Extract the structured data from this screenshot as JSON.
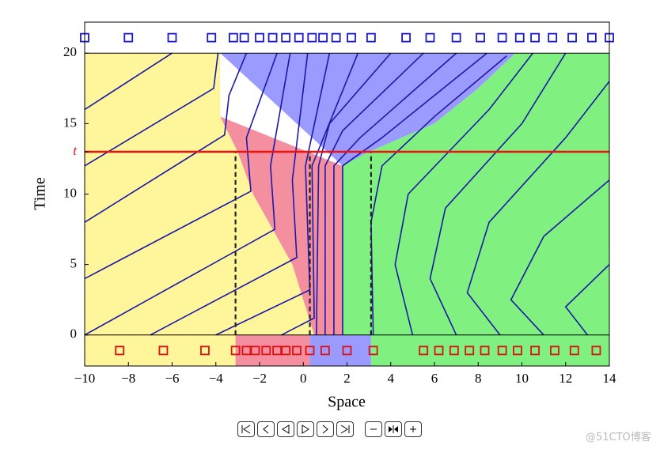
{
  "chart_data": {
    "type": "trajectory",
    "xlabel": "Space",
    "ylabel": "Time",
    "xlim": [
      -10,
      14
    ],
    "ylim": [
      -2.2,
      22.2
    ],
    "xticks": [
      {
        "value": -10,
        "label": "−10"
      },
      {
        "value": -8,
        "label": "−8"
      },
      {
        "value": -6,
        "label": "−6"
      },
      {
        "value": -4,
        "label": "−4"
      },
      {
        "value": -2,
        "label": "−2"
      },
      0,
      2,
      4,
      6,
      8,
      10,
      12,
      14
    ],
    "yticks": [
      0,
      5,
      10,
      15,
      20,
      {
        "value": 13,
        "label": "t"
      }
    ],
    "regions": [
      {
        "color": "#fff59a",
        "x": [
          -10,
          -3.8,
          -3.8,
          -3.0,
          -2.3,
          -0.5,
          0.5,
          -10
        ],
        "y": [
          20,
          20,
          15.5,
          13,
          10,
          5,
          0,
          0
        ]
      },
      {
        "color": "#f48fa0",
        "x": [
          -3.8,
          1.8,
          1.8,
          0.5,
          -0.5,
          -2.3,
          -3.0
        ],
        "y": [
          15.5,
          12,
          0,
          0,
          5,
          10,
          13
        ]
      },
      {
        "color": "#9a9aff",
        "x": [
          -3.8,
          9.7,
          8,
          6,
          3,
          1.8
        ],
        "y": [
          20,
          20,
          17.5,
          15,
          13,
          12
        ]
      },
      {
        "color": "#80f080",
        "x": [
          1.8,
          14,
          14,
          9.7,
          8,
          6,
          3,
          1.8
        ],
        "y": [
          0,
          0,
          20,
          20,
          17.5,
          15,
          13,
          12
        ]
      },
      {
        "color": "#fff59a",
        "x": [
          -10,
          -3.1,
          -3.1,
          -10
        ],
        "y": [
          -2.2,
          -2.2,
          0,
          0
        ]
      },
      {
        "color": "#f48fa0",
        "x": [
          -3.1,
          0.3,
          0.3,
          -3.1
        ],
        "y": [
          -2.2,
          -2.2,
          0,
          0
        ]
      },
      {
        "color": "#9a9aff",
        "x": [
          0.3,
          3.1,
          3.1,
          0.3
        ],
        "y": [
          -2.2,
          -2.2,
          0,
          0
        ]
      },
      {
        "color": "#80f080",
        "x": [
          3.1,
          14,
          14,
          3.1
        ],
        "y": [
          -2.2,
          -2.2,
          0,
          0
        ]
      }
    ],
    "line_color": "#1a1aa6",
    "trajectories": [
      {
        "x": [
          -10,
          -6
        ],
        "y": [
          16,
          20
        ]
      },
      {
        "x": [
          -10,
          -4.1,
          -3.9
        ],
        "y": [
          12,
          17.5,
          20
        ]
      },
      {
        "x": [
          -10,
          -3.6,
          -3.4,
          -2.6
        ],
        "y": [
          8,
          14.2,
          17,
          20
        ]
      },
      {
        "x": [
          -10,
          -2.4,
          -2.6,
          -1.2
        ],
        "y": [
          4,
          10.2,
          14,
          20
        ]
      },
      {
        "x": [
          -10,
          -1.3,
          -1.5,
          -0.6
        ],
        "y": [
          0,
          7.5,
          12,
          20
        ]
      },
      {
        "x": [
          -7,
          -0.3,
          -0.5,
          0.2
        ],
        "y": [
          0,
          5.5,
          11,
          20
        ]
      },
      {
        "x": [
          -4,
          0.3,
          0.1,
          1.2
        ],
        "y": [
          0,
          3.2,
          12,
          20
        ]
      },
      {
        "x": [
          -1,
          0.5,
          0.4,
          2.5
        ],
        "y": [
          0,
          1.2,
          12,
          20
        ]
      },
      {
        "x": [
          0.6,
          0.7,
          1.2,
          4.0
        ],
        "y": [
          0,
          12,
          15,
          20
        ]
      },
      {
        "x": [
          1.0,
          1.0,
          1.8,
          5.5
        ],
        "y": [
          0,
          12,
          14.5,
          20
        ]
      },
      {
        "x": [
          1.4,
          1.4,
          2.6,
          7.0
        ],
        "y": [
          0,
          12,
          14,
          20
        ]
      },
      {
        "x": [
          1.8,
          1.8,
          3.6,
          8.4
        ],
        "y": [
          0,
          12,
          14,
          20
        ]
      },
      {
        "x": [
          3.2,
          3.1,
          3.6,
          6.0,
          9.3
        ],
        "y": [
          0,
          8,
          12,
          15.5,
          19.8
        ]
      },
      {
        "x": [
          5,
          4.2,
          4.8,
          8.5,
          10.5
        ],
        "y": [
          0,
          5,
          10,
          16,
          20
        ]
      },
      {
        "x": [
          7,
          5.8,
          6.5,
          10,
          12
        ],
        "y": [
          0,
          4,
          9,
          15,
          20
        ]
      },
      {
        "x": [
          9,
          7.5,
          8.5,
          12,
          14
        ],
        "y": [
          0,
          3,
          8,
          14,
          18
        ]
      },
      {
        "x": [
          11,
          9.5,
          11,
          14
        ],
        "y": [
          0,
          2.5,
          7,
          11
        ]
      },
      {
        "x": [
          13,
          12,
          14
        ],
        "y": [
          0,
          2,
          5
        ]
      }
    ],
    "top_markers": {
      "color": "#1a1acc",
      "y": 21.1,
      "x": [
        -10,
        -8,
        -6,
        -4.2,
        -3.2,
        -2.7,
        -2,
        -1.4,
        -0.8,
        -0.2,
        0.4,
        0.9,
        1.5,
        2.2,
        3.1,
        4.7,
        5.8,
        7,
        8.1,
        9.1,
        9.9,
        10.6,
        11.4,
        12.3,
        13.2,
        14
      ]
    },
    "bottom_markers": {
      "color": "#dd1111",
      "y": -1.1,
      "x": [
        -8.4,
        -6.4,
        -4.5,
        -3.1,
        -2.6,
        -2.2,
        -1.7,
        -1.2,
        -0.8,
        -0.3,
        0.3,
        1,
        2,
        3.2,
        5.5,
        6.2,
        6.9,
        7.6,
        8.3,
        9.1,
        9.8,
        10.6,
        11.5,
        12.4,
        13.4
      ]
    },
    "time_line": {
      "value": 13,
      "color": "#ee1111"
    },
    "dashed": {
      "x": [
        -3.1,
        0.3,
        3.1
      ],
      "y0": 0
    }
  },
  "watermark": "@51CTO博客"
}
